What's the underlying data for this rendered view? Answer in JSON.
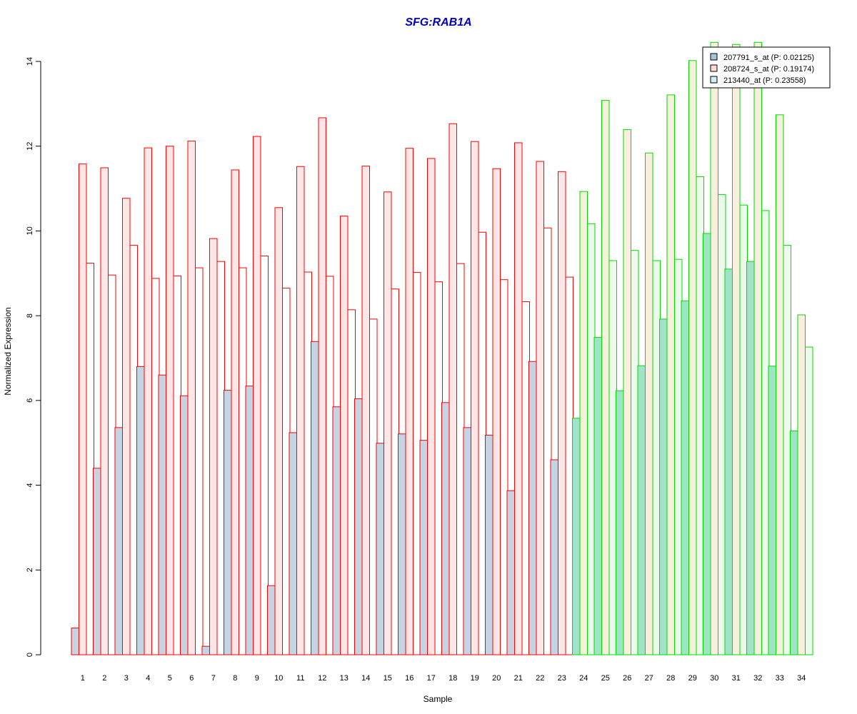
{
  "chart_data": {
    "type": "bar",
    "title": "SFG:RAB1A",
    "xlabel": "Sample",
    "ylabel": "Normalized Expression",
    "ylim": [
      0,
      14
    ],
    "yticks": [
      0,
      2,
      4,
      6,
      8,
      10,
      12,
      14
    ],
    "grid": false,
    "legend_position": "top-right",
    "categories": [
      "1",
      "2",
      "3",
      "4",
      "5",
      "6",
      "7",
      "8",
      "9",
      "10",
      "11",
      "12",
      "13",
      "14",
      "15",
      "16",
      "17",
      "18",
      "19",
      "20",
      "21",
      "22",
      "23",
      "24",
      "25",
      "26",
      "27",
      "28",
      "29",
      "30",
      "31",
      "32",
      "33",
      "34"
    ],
    "group_sizes": [
      23,
      11
    ],
    "group_border_colors": [
      "#ff0000",
      "#00dd00"
    ],
    "series": [
      {
        "name": "207791_s_at (P: 0.02125)",
        "fill_colors": [
          "#c6d3e2",
          "#a0e4c8"
        ],
        "legend_fill": "#a9c4d9",
        "values": [
          0.63,
          4.4,
          5.36,
          6.8,
          6.6,
          6.11,
          0.2,
          6.24,
          6.34,
          1.63,
          5.24,
          7.39,
          5.85,
          6.04,
          4.99,
          5.21,
          5.06,
          5.95,
          5.36,
          5.18,
          3.87,
          6.92,
          4.6,
          5.58,
          7.49,
          6.23,
          6.82,
          7.92,
          8.35,
          9.94,
          9.1,
          9.28,
          6.81,
          5.28
        ]
      },
      {
        "name": "208724_s_at (P: 0.19174)",
        "fill_colors": [
          "#ffe6e6",
          "#f6f0dc"
        ],
        "legend_fill": "#ffd8d8",
        "values": [
          11.58,
          11.49,
          10.77,
          11.96,
          12.0,
          12.12,
          9.82,
          11.44,
          12.23,
          10.55,
          11.52,
          12.67,
          10.35,
          11.53,
          10.92,
          11.95,
          11.71,
          12.53,
          12.11,
          11.47,
          12.08,
          11.64,
          11.4,
          10.93,
          13.08,
          12.39,
          11.84,
          13.21,
          14.02,
          14.45,
          14.4,
          14.45,
          12.74,
          8.02
        ]
      },
      {
        "name": "213440_at (P: 0.23558)",
        "fill_colors": [
          "#ffffff",
          "#ecfaec"
        ],
        "legend_fill": "#d6ecf4",
        "values": [
          9.24,
          8.96,
          9.66,
          8.88,
          8.94,
          9.13,
          9.28,
          9.13,
          9.41,
          8.65,
          9.03,
          8.93,
          8.14,
          7.92,
          8.63,
          9.02,
          8.8,
          9.23,
          9.97,
          8.85,
          8.33,
          10.07,
          8.91,
          10.17,
          9.3,
          9.54,
          9.3,
          9.33,
          11.28,
          10.86,
          10.61,
          10.48,
          9.66,
          7.26
        ]
      }
    ]
  }
}
